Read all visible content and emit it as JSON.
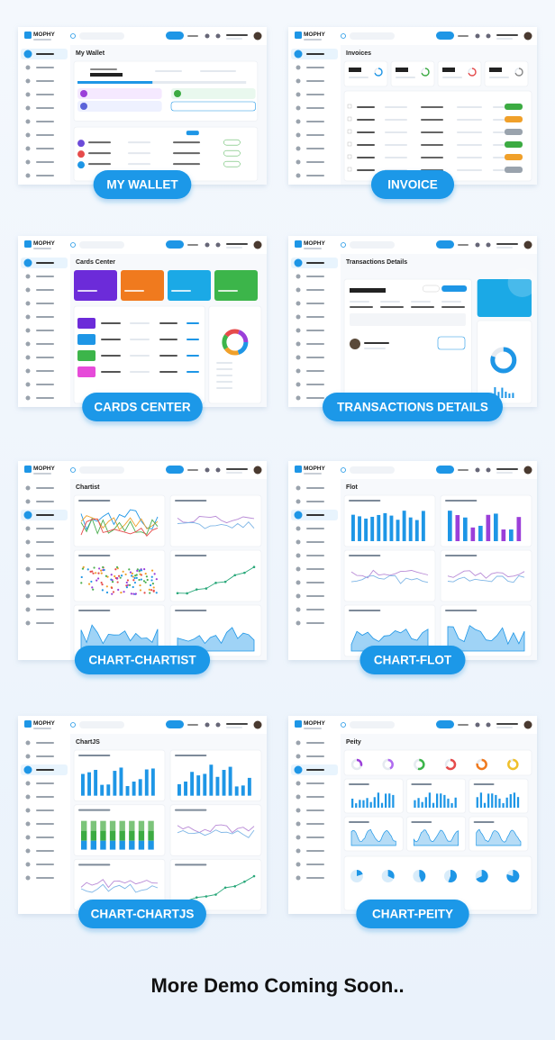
{
  "brand": "MOPHY",
  "cards": [
    {
      "label": "MY WALLET",
      "page_title": "My Wallet"
    },
    {
      "label": "INVOICE",
      "page_title": "Invoices"
    },
    {
      "label": "CARDS CENTER",
      "page_title": "Cards Center"
    },
    {
      "label": "TRANSACTIONS DETAILS",
      "page_title": "Transactions Details"
    },
    {
      "label": "CHART-CHARTIST",
      "page_title": "Chartist"
    },
    {
      "label": "CHART-FLOT",
      "page_title": "Flot"
    },
    {
      "label": "CHART-CHARTJS",
      "page_title": "ChartJS"
    },
    {
      "label": "CHART-PEITY",
      "page_title": "Peity"
    }
  ],
  "footer": "More Demo Coming Soon.."
}
